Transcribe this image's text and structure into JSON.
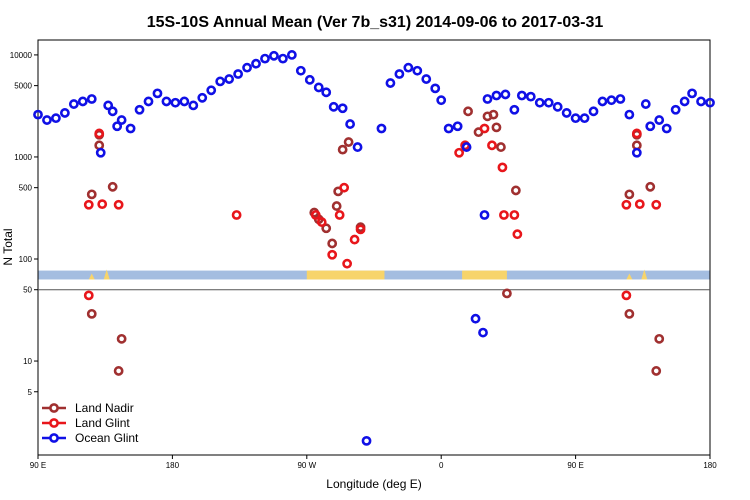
{
  "chart_data": {
    "type": "scatter",
    "title": "15S-10S Annual Mean (Ver 7b_s31)   2014-09-06 to 2017-03-31",
    "xlabel": "Longitude (deg E)",
    "ylabel": "N Total",
    "x_ticks": [
      {
        "value": 90,
        "label": "90 E"
      },
      {
        "value": 180,
        "label": "180"
      },
      {
        "value": 270,
        "label": "90 W"
      },
      {
        "value": 360,
        "label": "0"
      },
      {
        "value": 450,
        "label": "90 E"
      },
      {
        "value": 540,
        "label": "180"
      }
    ],
    "xlim": [
      90,
      540
    ],
    "ylim": [
      1.2,
      14000
    ],
    "y_scale": "log",
    "y_ticks": [
      {
        "value": 5,
        "label": "5"
      },
      {
        "value": 10,
        "label": "10"
      },
      {
        "value": 50,
        "label": "50"
      },
      {
        "value": 100,
        "label": "100"
      },
      {
        "value": 500,
        "label": "500"
      },
      {
        "value": 1000,
        "label": "1000"
      },
      {
        "value": 5000,
        "label": "5000"
      },
      {
        "value": 10000,
        "label": "10000"
      }
    ],
    "reference_line": 50,
    "land_strip": {
      "color_ocean": "#a4bde0",
      "color_land": "#f7d46b",
      "y_range": [
        63,
        77
      ]
    },
    "legend_position": "bottom-left",
    "series": [
      {
        "name": "Land Nadir",
        "color": "#a03030",
        "points": [
          [
            126,
            430
          ],
          [
            126,
            29
          ],
          [
            131,
            1300
          ],
          [
            131,
            1650
          ],
          [
            140,
            510
          ],
          [
            146,
            16.5
          ],
          [
            144,
            8
          ],
          [
            275,
            285
          ],
          [
            278,
            245
          ],
          [
            283,
            200
          ],
          [
            287,
            142
          ],
          [
            290,
            330
          ],
          [
            291,
            460
          ],
          [
            294,
            1180
          ],
          [
            298,
            1400
          ],
          [
            306,
            205
          ],
          [
            378,
            2800
          ],
          [
            385,
            1750
          ],
          [
            391,
            2500
          ],
          [
            395,
            2600
          ],
          [
            397,
            1950
          ],
          [
            400,
            1250
          ],
          [
            404,
            46
          ],
          [
            410,
            470
          ],
          [
            486,
            430
          ],
          [
            486,
            29
          ],
          [
            491,
            1300
          ],
          [
            491,
            1650
          ],
          [
            500,
            510
          ],
          [
            506,
            16.5
          ],
          [
            504,
            8
          ]
        ]
      },
      {
        "name Glint": "",
        "name": "Land Glint",
        "color": "#e8161b",
        "points": [
          [
            124,
            340
          ],
          [
            124,
            44
          ],
          [
            131,
            1700
          ],
          [
            133,
            345
          ],
          [
            144,
            340
          ],
          [
            223,
            270
          ],
          [
            276,
            270
          ],
          [
            280,
            230
          ],
          [
            287,
            110
          ],
          [
            292,
            270
          ],
          [
            295,
            500
          ],
          [
            297,
            90
          ],
          [
            302,
            155
          ],
          [
            306,
            195
          ],
          [
            372,
            1100
          ],
          [
            376,
            1300
          ],
          [
            389,
            1900
          ],
          [
            394,
            1300
          ],
          [
            401,
            790
          ],
          [
            402,
            270
          ],
          [
            409,
            270
          ],
          [
            411,
            175
          ],
          [
            484,
            340
          ],
          [
            484,
            44
          ],
          [
            491,
            1700
          ],
          [
            493,
            345
          ],
          [
            504,
            340
          ]
        ]
      },
      {
        "name": "Ocean Glint",
        "color": "#1010e6",
        "points": [
          [
            90,
            2600
          ],
          [
            96,
            2300
          ],
          [
            102,
            2400
          ],
          [
            108,
            2700
          ],
          [
            114,
            3300
          ],
          [
            120,
            3500
          ],
          [
            126,
            3700
          ],
          [
            132,
            1100
          ],
          [
            137,
            3200
          ],
          [
            140,
            2800
          ],
          [
            143,
            2000
          ],
          [
            146,
            2300
          ],
          [
            152,
            1900
          ],
          [
            158,
            2900
          ],
          [
            164,
            3500
          ],
          [
            170,
            4200
          ],
          [
            176,
            3500
          ],
          [
            182,
            3400
          ],
          [
            188,
            3500
          ],
          [
            194,
            3200
          ],
          [
            200,
            3800
          ],
          [
            206,
            4500
          ],
          [
            212,
            5500
          ],
          [
            218,
            5800
          ],
          [
            224,
            6500
          ],
          [
            230,
            7500
          ],
          [
            236,
            8200
          ],
          [
            242,
            9200
          ],
          [
            248,
            9800
          ],
          [
            254,
            9200
          ],
          [
            260,
            10000
          ],
          [
            266,
            7000
          ],
          [
            272,
            5700
          ],
          [
            278,
            4800
          ],
          [
            283,
            4300
          ],
          [
            288,
            3100
          ],
          [
            294,
            3000
          ],
          [
            299,
            2100
          ],
          [
            304,
            1250
          ],
          [
            310,
            1.65
          ],
          [
            320,
            1900
          ],
          [
            326,
            5300
          ],
          [
            332,
            6500
          ],
          [
            338,
            7500
          ],
          [
            344,
            7000
          ],
          [
            350,
            5800
          ],
          [
            356,
            4700
          ],
          [
            360,
            3600
          ],
          [
            365,
            1900
          ],
          [
            371,
            2000
          ],
          [
            377,
            1250
          ],
          [
            383,
            26
          ],
          [
            388,
            19
          ],
          [
            389,
            270
          ],
          [
            391,
            3700
          ],
          [
            397,
            4000
          ],
          [
            403,
            4100
          ],
          [
            409,
            2900
          ],
          [
            414,
            4000
          ],
          [
            420,
            3900
          ],
          [
            426,
            3400
          ],
          [
            432,
            3400
          ],
          [
            438,
            3100
          ],
          [
            444,
            2700
          ],
          [
            450,
            2400
          ],
          [
            456,
            2400
          ],
          [
            462,
            2800
          ],
          [
            468,
            3500
          ],
          [
            474,
            3600
          ],
          [
            480,
            3700
          ],
          [
            486,
            2600
          ],
          [
            491,
            1100
          ],
          [
            497,
            3300
          ],
          [
            500,
            2000
          ],
          [
            506,
            2300
          ],
          [
            511,
            1900
          ],
          [
            517,
            2900
          ],
          [
            523,
            3500
          ],
          [
            528,
            4200
          ],
          [
            534,
            3500
          ],
          [
            540,
            3400
          ]
        ]
      }
    ]
  }
}
